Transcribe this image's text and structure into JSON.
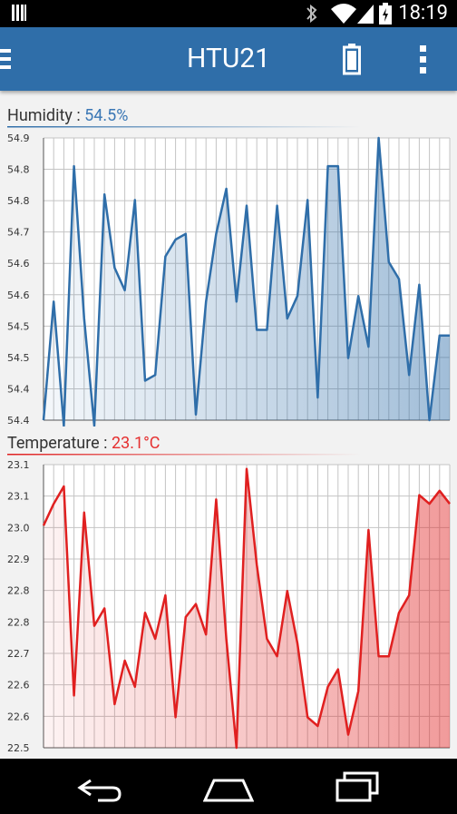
{
  "status_bar": {
    "time": "18:19"
  },
  "app_bar": {
    "title": "HTU21"
  },
  "charts": {
    "humidity": {
      "label": "Humidity :",
      "value": "54.5%",
      "color": "#2f6ea9",
      "y_ticks": [
        "54.9",
        "54.8",
        "54.8",
        "54.7",
        "54.6",
        "54.6",
        "54.5",
        "54.5",
        "54.4",
        "54.4"
      ],
      "ylim": [
        54.4,
        54.9
      ],
      "values": [
        54.4,
        54.61,
        54.39,
        54.85,
        54.58,
        54.39,
        54.8,
        54.67,
        54.63,
        54.79,
        54.47,
        54.48,
        54.69,
        54.72,
        54.73,
        54.41,
        54.61,
        54.73,
        54.81,
        54.61,
        54.78,
        54.56,
        54.56,
        54.78,
        54.58,
        54.62,
        54.79,
        54.44,
        54.85,
        54.85,
        54.51,
        54.62,
        54.53,
        54.9,
        54.68,
        54.65,
        54.48,
        54.64,
        54.4,
        54.55,
        54.55
      ]
    },
    "temperature": {
      "label": "Temperature :",
      "value": "23.1°C",
      "color": "#e02020",
      "y_ticks": [
        "23.1",
        "23.1",
        "23.0",
        "22.9",
        "22.8",
        "22.8",
        "22.7",
        "22.6",
        "22.6",
        "22.5"
      ],
      "ylim": [
        22.5,
        23.15
      ],
      "values": [
        23.01,
        23.06,
        23.1,
        22.62,
        23.04,
        22.78,
        22.82,
        22.6,
        22.7,
        22.64,
        22.81,
        22.75,
        22.85,
        22.57,
        22.8,
        22.83,
        22.76,
        23.07,
        22.75,
        22.5,
        23.14,
        22.92,
        22.75,
        22.71,
        22.86,
        22.74,
        22.57,
        22.55,
        22.64,
        22.68,
        22.53,
        22.63,
        23.0,
        22.71,
        22.71,
        22.81,
        22.85,
        23.08,
        23.06,
        23.09,
        23.06
      ]
    }
  },
  "navigation": {
    "back": "back",
    "home": "home",
    "recents": "recents"
  }
}
